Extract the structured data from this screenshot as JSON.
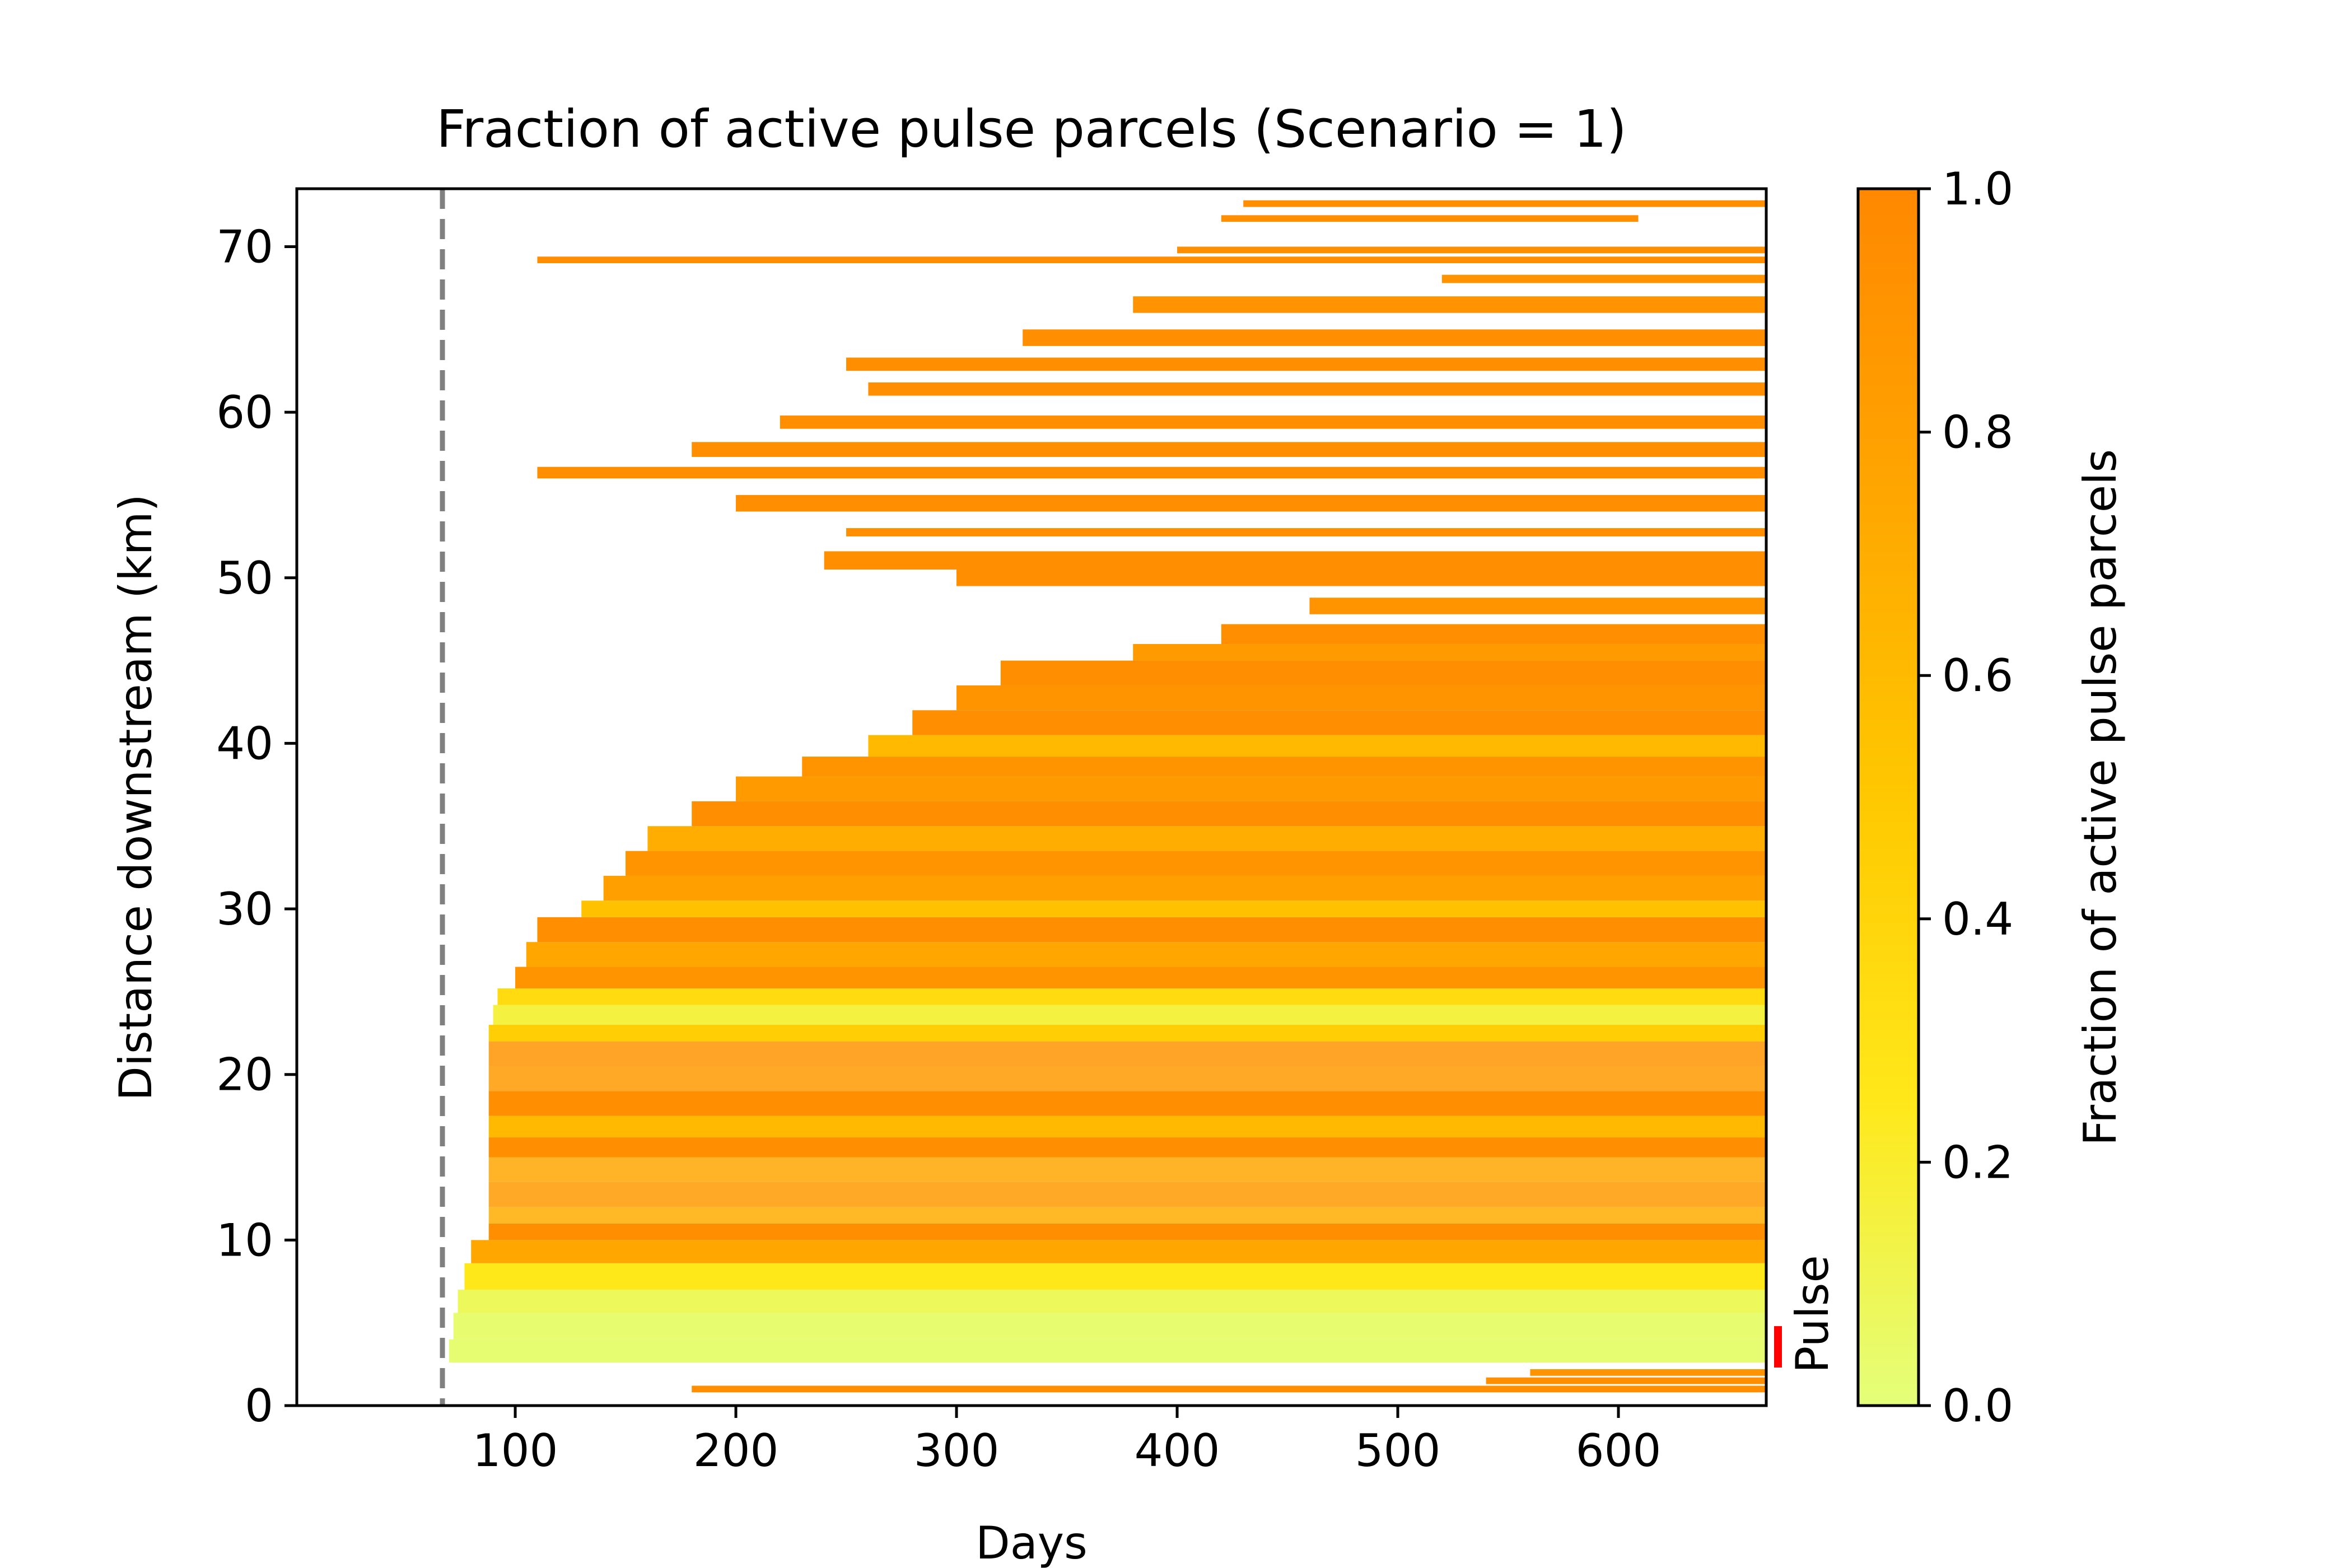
{
  "chart_data": {
    "type": "heatmap",
    "title": "Fraction of active pulse parcels (Scenario = 1)",
    "xlabel": "Days",
    "ylabel": "Distance downstream (km)",
    "xlim": [
      1,
      667
    ],
    "ylim": [
      0,
      73.5
    ],
    "x_ticks": [
      100,
      200,
      300,
      400,
      500,
      600
    ],
    "y_ticks": [
      0,
      10,
      20,
      30,
      40,
      50,
      60,
      70
    ],
    "grid": false,
    "pulse_start_day": 67,
    "pulse_marker": {
      "label": "Pulse",
      "y_range": [
        2.3,
        4.8
      ],
      "color": "#ff0000"
    },
    "colorbar": {
      "label": "Fraction of active pulse parcels",
      "range": [
        0.0,
        1.0
      ],
      "ticks": [
        "0.0",
        "0.2",
        "0.4",
        "0.6",
        "0.8",
        "1.0"
      ],
      "colors": [
        "#e4ff7a",
        "#ffe81a",
        "#ffc800",
        "#ffa600",
        "#ff8800"
      ]
    },
    "bands": [
      {
        "y": [
          2.6,
          4.0
        ],
        "x": [
          70,
          667
        ],
        "value": 0.02
      },
      {
        "y": [
          4.0,
          5.6
        ],
        "x": [
          72,
          667
        ],
        "value": 0.03
      },
      {
        "y": [
          5.6,
          7.0
        ],
        "x": [
          74,
          667
        ],
        "value": 0.08
      },
      {
        "y": [
          7.0,
          8.6
        ],
        "x": [
          77,
          667
        ],
        "value": 0.25
      },
      {
        "y": [
          8.6,
          10.0
        ],
        "x": [
          80,
          667
        ],
        "value": 0.75
      },
      {
        "y": [
          10.0,
          11.0
        ],
        "x": [
          88,
          667
        ],
        "value": 0.95
      },
      {
        "y": [
          11.0,
          12.0
        ],
        "x": [
          88,
          667
        ],
        "value": 0.7,
        "sparse": true
      },
      {
        "y": [
          12.0,
          13.5
        ],
        "x": [
          88,
          667
        ],
        "value": 0.85,
        "sparse": true
      },
      {
        "y": [
          13.5,
          15.0
        ],
        "x": [
          88,
          667
        ],
        "value": 0.75,
        "sparse": true
      },
      {
        "y": [
          15.0,
          16.2
        ],
        "x": [
          88,
          667
        ],
        "value": 0.95
      },
      {
        "y": [
          16.2,
          17.5
        ],
        "x": [
          88,
          667
        ],
        "value": 0.6
      },
      {
        "y": [
          17.5,
          19.0
        ],
        "x": [
          88,
          667
        ],
        "value": 0.95
      },
      {
        "y": [
          19.0,
          20.5
        ],
        "x": [
          88,
          667
        ],
        "value": 0.85,
        "sparse": true
      },
      {
        "y": [
          20.5,
          22.0
        ],
        "x": [
          88,
          667
        ],
        "value": 0.9,
        "sparse": true
      },
      {
        "y": [
          22.0,
          23.0
        ],
        "x": [
          88,
          667
        ],
        "value": 0.45
      },
      {
        "y": [
          23.0,
          24.2
        ],
        "x": [
          90,
          667
        ],
        "value": 0.15
      },
      {
        "y": [
          24.2,
          25.2
        ],
        "x": [
          92,
          667
        ],
        "value": 0.35
      },
      {
        "y": [
          25.2,
          26.5
        ],
        "x": [
          100,
          667
        ],
        "value": 0.9
      },
      {
        "y": [
          26.5,
          28.0
        ],
        "x": [
          105,
          667
        ],
        "value": 0.75
      },
      {
        "y": [
          28.0,
          29.5
        ],
        "x": [
          110,
          667
        ],
        "value": 0.95
      },
      {
        "y": [
          29.5,
          30.5
        ],
        "x": [
          130,
          667
        ],
        "value": 0.55
      },
      {
        "y": [
          30.5,
          32.0
        ],
        "x": [
          140,
          667
        ],
        "value": 0.8
      },
      {
        "y": [
          32.0,
          33.5
        ],
        "x": [
          150,
          667
        ],
        "value": 0.9
      },
      {
        "y": [
          33.5,
          35.0
        ],
        "x": [
          160,
          667
        ],
        "value": 0.7
      },
      {
        "y": [
          35.0,
          36.5
        ],
        "x": [
          180,
          667
        ],
        "value": 0.95
      },
      {
        "y": [
          36.5,
          38.0
        ],
        "x": [
          200,
          667
        ],
        "value": 0.85
      },
      {
        "y": [
          38.0,
          39.2
        ],
        "x": [
          230,
          667
        ],
        "value": 0.9
      },
      {
        "y": [
          39.2,
          40.5
        ],
        "x": [
          260,
          667
        ],
        "value": 0.6
      },
      {
        "y": [
          40.5,
          42.0
        ],
        "x": [
          280,
          667
        ],
        "value": 0.95
      },
      {
        "y": [
          42.0,
          43.5
        ],
        "x": [
          300,
          667
        ],
        "value": 0.9
      },
      {
        "y": [
          43.5,
          45.0
        ],
        "x": [
          320,
          667
        ],
        "value": 0.95
      },
      {
        "y": [
          45.0,
          46.0
        ],
        "x": [
          380,
          667
        ],
        "value": 0.85
      },
      {
        "y": [
          46.0,
          47.2
        ],
        "x": [
          420,
          667
        ],
        "value": 0.95
      },
      {
        "y": [
          47.8,
          48.8
        ],
        "x": [
          460,
          667
        ],
        "value": 0.9
      },
      {
        "y": [
          49.5,
          50.5
        ],
        "x": [
          300,
          667
        ],
        "value": 0.95
      },
      {
        "y": [
          50.5,
          51.6
        ],
        "x": [
          240,
          667
        ],
        "value": 0.95
      },
      {
        "y": [
          52.5,
          53.0
        ],
        "x": [
          250,
          667
        ],
        "value": 0.95
      },
      {
        "y": [
          54.0,
          55.0
        ],
        "x": [
          200,
          667
        ],
        "value": 0.95
      },
      {
        "y": [
          56.0,
          56.7
        ],
        "x": [
          110,
          667
        ],
        "value": 0.95
      },
      {
        "y": [
          57.3,
          58.2
        ],
        "x": [
          180,
          667
        ],
        "value": 0.95
      },
      {
        "y": [
          59.0,
          59.8
        ],
        "x": [
          220,
          667
        ],
        "value": 0.95
      },
      {
        "y": [
          61.0,
          61.8
        ],
        "x": [
          260,
          667
        ],
        "value": 0.95
      },
      {
        "y": [
          62.5,
          63.3
        ],
        "x": [
          250,
          667
        ],
        "value": 0.95
      },
      {
        "y": [
          64.0,
          65.0
        ],
        "x": [
          330,
          667
        ],
        "value": 0.95
      },
      {
        "y": [
          66.0,
          67.0
        ],
        "x": [
          380,
          667
        ],
        "value": 0.9
      },
      {
        "y": [
          67.8,
          68.3
        ],
        "x": [
          520,
          667
        ],
        "value": 0.9
      },
      {
        "y": [
          69.0,
          69.4
        ],
        "x": [
          110,
          667
        ],
        "value": 0.95
      },
      {
        "y": [
          69.6,
          70.0
        ],
        "x": [
          400,
          667
        ],
        "value": 0.95
      },
      {
        "y": [
          71.5,
          71.9
        ],
        "x": [
          420,
          609
        ],
        "value": 0.95
      },
      {
        "y": [
          72.4,
          72.8
        ],
        "x": [
          430,
          667
        ],
        "value": 0.95
      },
      {
        "y": [
          0.8,
          1.2
        ],
        "x": [
          180,
          667
        ],
        "value": 0.95
      },
      {
        "y": [
          1.3,
          1.7
        ],
        "x": [
          540,
          667
        ],
        "value": 0.95
      },
      {
        "y": [
          1.8,
          2.2
        ],
        "x": [
          560,
          667
        ],
        "value": 0.9
      }
    ]
  }
}
